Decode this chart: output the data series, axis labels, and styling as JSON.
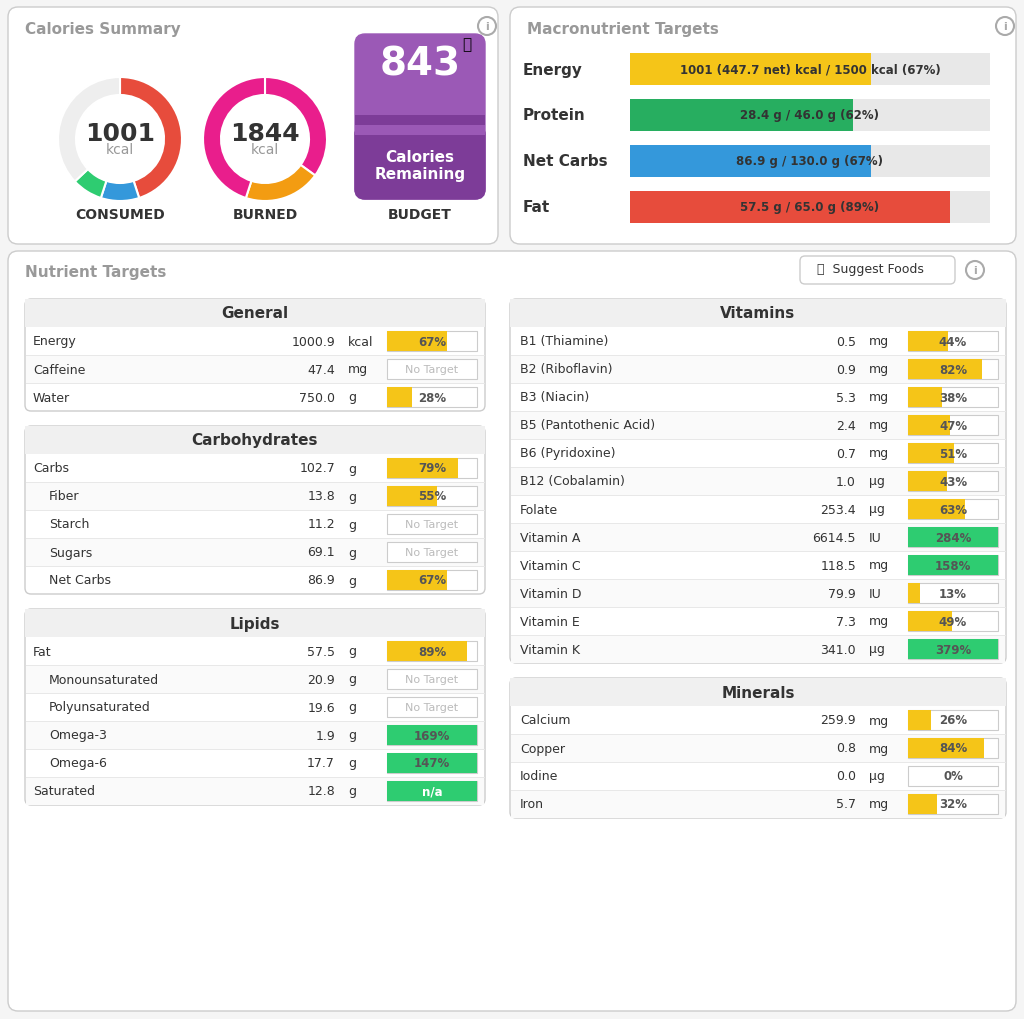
{
  "bg_color": "#f5f5f5",
  "panel_bg": "#ffffff",
  "border_color": "#dddddd",
  "cal_summary_title": "Calories Summary",
  "macro_targets_title": "Macronutrient Targets",
  "nutrient_targets_title": "Nutrient Targets",
  "consumed_value": "1001",
  "consumed_unit": "kcal",
  "consumed_label": "CONSUMED",
  "consumed_donut": [
    {
      "value": 45,
      "color": "#e74c3c"
    },
    {
      "value": 10,
      "color": "#3498db"
    },
    {
      "value": 8,
      "color": "#2ecc71"
    },
    {
      "value": 37,
      "color": "#eeeeee"
    }
  ],
  "burned_value": "1844",
  "burned_unit": "kcal",
  "burned_label": "BURNED",
  "burned_donut": [
    {
      "value": 65,
      "color": "#e91e8c"
    },
    {
      "value": 20,
      "color": "#f39c12"
    },
    {
      "value": 15,
      "color": "#e91e8c"
    }
  ],
  "budget_value": "843",
  "budget_label1": "Calories",
  "budget_label2": "Remaining",
  "budget_label_top": "BUDGET",
  "budget_bg": "#9b59b6",
  "budget_bottom_bg": "#8e44ad",
  "macro_rows": [
    {
      "label": "Energy",
      "text": "1001 (447.7 net) kcal / 1500 kcal (67%)",
      "pct": 0.67,
      "color": "#f0c040",
      "bar_color": "#f5c518"
    },
    {
      "label": "Protein",
      "text": "28.4 g / 46.0 g (62%)",
      "pct": 0.62,
      "color": "#27ae60",
      "bar_color": "#27ae60"
    },
    {
      "label": "Net Carbs",
      "text": "86.9 g / 130.0 g (67%)",
      "pct": 0.67,
      "color": "#3498db",
      "bar_color": "#3498db"
    },
    {
      "label": "Fat",
      "text": "57.5 g / 65.0 g (89%)",
      "pct": 0.89,
      "color": "#e74c3c",
      "bar_color": "#e74c3c"
    }
  ],
  "general_rows": [
    {
      "name": "Energy",
      "value": "1000.9",
      "unit": "kcal",
      "pct": 67,
      "bar_pct": 0.67,
      "type": "bar",
      "color": "#f5c518"
    },
    {
      "name": "Caffeine",
      "value": "47.4",
      "unit": "mg",
      "pct": null,
      "bar_pct": 0,
      "type": "notarget",
      "color": "#cccccc"
    },
    {
      "name": "Water",
      "value": "750.0",
      "unit": "g",
      "pct": 28,
      "bar_pct": 0.28,
      "type": "bar",
      "color": "#f5c518"
    }
  ],
  "carb_rows": [
    {
      "name": "Carbs",
      "value": "102.7",
      "unit": "g",
      "pct": 79,
      "bar_pct": 0.79,
      "type": "bar",
      "color": "#f5c518",
      "indent": false
    },
    {
      "name": "Fiber",
      "value": "13.8",
      "unit": "g",
      "pct": 55,
      "bar_pct": 0.55,
      "type": "bar",
      "color": "#f5c518",
      "indent": true
    },
    {
      "name": "Starch",
      "value": "11.2",
      "unit": "g",
      "pct": null,
      "bar_pct": 0,
      "type": "notarget",
      "color": "#cccccc",
      "indent": true
    },
    {
      "name": "Sugars",
      "value": "69.1",
      "unit": "g",
      "pct": null,
      "bar_pct": 0,
      "type": "notarget",
      "color": "#cccccc",
      "indent": true
    },
    {
      "name": "Net Carbs",
      "value": "86.9",
      "unit": "g",
      "pct": 67,
      "bar_pct": 0.67,
      "type": "bar",
      "color": "#f5c518",
      "indent": true
    }
  ],
  "lipid_rows": [
    {
      "name": "Fat",
      "value": "57.5",
      "unit": "g",
      "pct": 89,
      "bar_pct": 0.89,
      "type": "bar",
      "color": "#f5c518",
      "indent": false
    },
    {
      "name": "Monounsaturated",
      "value": "20.9",
      "unit": "g",
      "pct": null,
      "bar_pct": 0,
      "type": "notarget",
      "color": "#cccccc",
      "indent": true
    },
    {
      "name": "Polyunsaturated",
      "value": "19.6",
      "unit": "g",
      "pct": null,
      "bar_pct": 0,
      "type": "notarget",
      "color": "#cccccc",
      "indent": true
    },
    {
      "name": "Omega-3",
      "value": "1.9",
      "unit": "g",
      "pct": 169,
      "bar_pct": 1.0,
      "type": "green",
      "color": "#2ecc71",
      "indent": true
    },
    {
      "name": "Omega-6",
      "value": "17.7",
      "unit": "g",
      "pct": 147,
      "bar_pct": 1.0,
      "type": "green",
      "color": "#2ecc71",
      "indent": true
    },
    {
      "name": "Saturated",
      "value": "12.8",
      "unit": "g",
      "pct": null,
      "bar_pct": 1.0,
      "type": "na",
      "color": "#2ecc71",
      "indent": false
    }
  ],
  "vitamin_rows": [
    {
      "name": "B1 (Thiamine)",
      "value": "0.5",
      "unit": "mg",
      "pct": 44,
      "bar_pct": 0.44,
      "color": "#f5c518"
    },
    {
      "name": "B2 (Riboflavin)",
      "value": "0.9",
      "unit": "mg",
      "pct": 82,
      "bar_pct": 0.82,
      "color": "#f5c518"
    },
    {
      "name": "B3 (Niacin)",
      "value": "5.3",
      "unit": "mg",
      "pct": 38,
      "bar_pct": 0.38,
      "color": "#f5c518"
    },
    {
      "name": "B5 (Pantothenic Acid)",
      "value": "2.4",
      "unit": "mg",
      "pct": 47,
      "bar_pct": 0.47,
      "color": "#f5c518"
    },
    {
      "name": "B6 (Pyridoxine)",
      "value": "0.7",
      "unit": "mg",
      "pct": 51,
      "bar_pct": 0.51,
      "color": "#f5c518"
    },
    {
      "name": "B12 (Cobalamin)",
      "value": "1.0",
      "unit": "µg",
      "pct": 43,
      "bar_pct": 0.43,
      "color": "#f5c518"
    },
    {
      "name": "Folate",
      "value": "253.4",
      "unit": "µg",
      "pct": 63,
      "bar_pct": 0.63,
      "color": "#f5c518"
    },
    {
      "name": "Vitamin A",
      "value": "6614.5",
      "unit": "IU",
      "pct": 284,
      "bar_pct": 1.0,
      "color": "#2ecc71"
    },
    {
      "name": "Vitamin C",
      "value": "118.5",
      "unit": "mg",
      "pct": 158,
      "bar_pct": 1.0,
      "color": "#2ecc71"
    },
    {
      "name": "Vitamin D",
      "value": "79.9",
      "unit": "IU",
      "pct": 13,
      "bar_pct": 0.13,
      "color": "#f5c518"
    },
    {
      "name": "Vitamin E",
      "value": "7.3",
      "unit": "mg",
      "pct": 49,
      "bar_pct": 0.49,
      "color": "#f5c518"
    },
    {
      "name": "Vitamin K",
      "value": "341.0",
      "unit": "µg",
      "pct": 379,
      "bar_pct": 1.0,
      "color": "#2ecc71"
    }
  ],
  "mineral_rows": [
    {
      "name": "Calcium",
      "value": "259.9",
      "unit": "mg",
      "pct": 26,
      "bar_pct": 0.26,
      "color": "#f5c518"
    },
    {
      "name": "Copper",
      "value": "0.8",
      "unit": "mg",
      "pct": 84,
      "bar_pct": 0.84,
      "color": "#f5c518"
    },
    {
      "name": "Iodine",
      "value": "0.0",
      "unit": "µg",
      "pct": 0,
      "bar_pct": 0.0,
      "color": "#f5c518"
    },
    {
      "name": "Iron",
      "value": "5.7",
      "unit": "mg",
      "pct": 32,
      "bar_pct": 0.32,
      "color": "#f5c518"
    }
  ]
}
